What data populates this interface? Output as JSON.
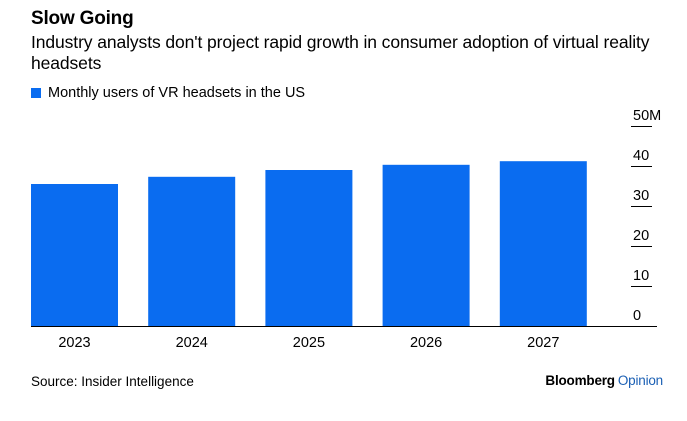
{
  "header": {
    "title": "Slow Going",
    "subtitle": "Industry analysts don't project rapid growth in consumer adoption of virtual reality headsets"
  },
  "legend": {
    "label": "Monthly users of VR headsets in the US",
    "color": "#0a6cf0"
  },
  "footer": {
    "source": "Source: Insider Intelligence",
    "brand_main": "Bloomberg",
    "brand_sub": "Opinion"
  },
  "chart_data": {
    "type": "bar",
    "categories": [
      "2023",
      "2024",
      "2025",
      "2026",
      "2027"
    ],
    "series": [
      {
        "name": "Monthly users of VR headsets in the US",
        "values": [
          35.5,
          37.3,
          39.0,
          40.3,
          41.2
        ]
      }
    ],
    "ylim": [
      0,
      50
    ],
    "yticks": [
      0,
      10,
      20,
      30,
      40,
      50
    ],
    "ytick_labels": [
      "0",
      "10",
      "20",
      "30",
      "40",
      "50M"
    ],
    "y_axis_position": "right",
    "grid": false,
    "legend_position": "top-left",
    "color": "#0a6cf0"
  }
}
